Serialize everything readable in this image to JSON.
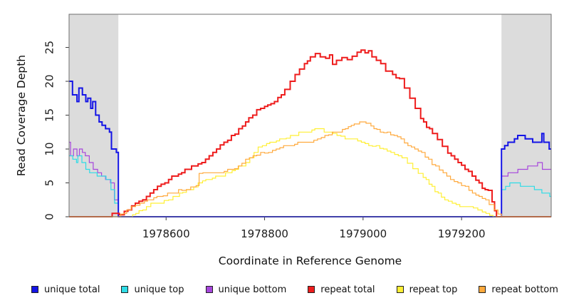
{
  "chart_data": {
    "type": "line",
    "subtype": "step",
    "title": "",
    "xlabel": "Coordinate in Reference Genome",
    "ylabel": "Read Coverage Depth",
    "xlim": [
      1978403,
      1979382
    ],
    "ylim": [
      0,
      29.9
    ],
    "xticks": [
      1978600,
      1978800,
      1979000,
      1979200
    ],
    "yticks": [
      0,
      5,
      10,
      15,
      20,
      25
    ],
    "grid": false,
    "legend_position": "bottom",
    "box_color": "#6e6e6e",
    "tick_color": "#3a3a3a",
    "background": "#ffffff",
    "shaded_regions": [
      {
        "name": "left-masked-region",
        "x0": 1978403,
        "x1": 1978503,
        "color": "#dcdcdc"
      },
      {
        "name": "right-masked-region",
        "x0": 1979281,
        "x1": 1979382,
        "color": "#dcdcdc"
      }
    ],
    "series": [
      {
        "name": "unique total",
        "color": "#1414e6",
        "width": 2,
        "points": [
          [
            1978403,
            20
          ],
          [
            1978410,
            18
          ],
          [
            1978419,
            17
          ],
          [
            1978423,
            19
          ],
          [
            1978437,
            17
          ],
          [
            1978441,
            17.5
          ],
          [
            1978447,
            16
          ],
          [
            1978451,
            17
          ],
          [
            1978457,
            15
          ],
          [
            1978464,
            14
          ],
          [
            1978470,
            13.5
          ],
          [
            1978477,
            13
          ],
          [
            1978485,
            12.5
          ],
          [
            1978489,
            10
          ],
          [
            1978499,
            9.5
          ],
          [
            1978503,
            0
          ],
          [
            1979280,
            0
          ],
          [
            1979281,
            10
          ],
          [
            1979314,
            12
          ],
          [
            1979352,
            11
          ],
          [
            1979363,
            12.3
          ],
          [
            1979367,
            11
          ],
          [
            1979378,
            10
          ],
          [
            1979382,
            10
          ]
        ]
      },
      {
        "name": "unique top",
        "color": "#2edce6",
        "width": 1.2,
        "points": [
          [
            1978403,
            9
          ],
          [
            1978418,
            8
          ],
          [
            1978421,
            9
          ],
          [
            1978437,
            7
          ],
          [
            1978460,
            6
          ],
          [
            1978478,
            5.5
          ],
          [
            1978488,
            4
          ],
          [
            1978503,
            0
          ],
          [
            1979280,
            0
          ],
          [
            1979281,
            4
          ],
          [
            1979298,
            5
          ],
          [
            1979355,
            4
          ],
          [
            1979379,
            3
          ],
          [
            1979382,
            3
          ]
        ]
      },
      {
        "name": "unique bottom",
        "color": "#a646dc",
        "width": 1.2,
        "points": [
          [
            1978403,
            11
          ],
          [
            1978406,
            9
          ],
          [
            1978412,
            10
          ],
          [
            1978419,
            9
          ],
          [
            1978424,
            10
          ],
          [
            1978436,
            9
          ],
          [
            1978444,
            8
          ],
          [
            1978452,
            7
          ],
          [
            1978461,
            6.5
          ],
          [
            1978469,
            6
          ],
          [
            1978477,
            5.5
          ],
          [
            1978487,
            5
          ],
          [
            1978503,
            0
          ],
          [
            1979280,
            0
          ],
          [
            1979281,
            6
          ],
          [
            1979321,
            7
          ],
          [
            1979361,
            8
          ],
          [
            1979364,
            7
          ],
          [
            1979382,
            7
          ]
        ]
      },
      {
        "name": "repeat total",
        "color": "#ee1c1c",
        "width": 2,
        "points": [
          [
            1978403,
            0
          ],
          [
            1978505,
            0.3
          ],
          [
            1978515,
            0.8
          ],
          [
            1978530,
            1.6
          ],
          [
            1978545,
            2.3
          ],
          [
            1978560,
            3
          ],
          [
            1978575,
            4
          ],
          [
            1978590,
            4.8
          ],
          [
            1978605,
            5.5
          ],
          [
            1978625,
            6.3
          ],
          [
            1978645,
            7
          ],
          [
            1978665,
            7.8
          ],
          [
            1978680,
            8.5
          ],
          [
            1978695,
            9.5
          ],
          [
            1978710,
            10.6
          ],
          [
            1978725,
            11.3
          ],
          [
            1978740,
            12.2
          ],
          [
            1978755,
            13.4
          ],
          [
            1978768,
            14.6
          ],
          [
            1978784,
            15.8
          ],
          [
            1978800,
            16.3
          ],
          [
            1978813,
            16.7
          ],
          [
            1978827,
            17.6
          ],
          [
            1978841,
            18.8
          ],
          [
            1978852,
            20
          ],
          [
            1978862,
            21
          ],
          [
            1978871,
            21.8
          ],
          [
            1978881,
            22.6
          ],
          [
            1978893,
            23.6
          ],
          [
            1978903,
            24.1
          ],
          [
            1978913,
            23.6
          ],
          [
            1978924,
            23.4
          ],
          [
            1978932,
            23.9
          ],
          [
            1978938,
            22.5
          ],
          [
            1978946,
            23.1
          ],
          [
            1978957,
            23.5
          ],
          [
            1978968,
            23.2
          ],
          [
            1978978,
            23.7
          ],
          [
            1978988,
            24.3
          ],
          [
            1978996,
            24.6
          ],
          [
            1979004,
            24.2
          ],
          [
            1979011,
            24.5
          ],
          [
            1979018,
            23.6
          ],
          [
            1979027,
            23.1
          ],
          [
            1979036,
            22.6
          ],
          [
            1979046,
            21.5
          ],
          [
            1979060,
            21
          ],
          [
            1979074,
            20.4
          ],
          [
            1979084,
            19
          ],
          [
            1979095,
            17.5
          ],
          [
            1979106,
            16
          ],
          [
            1979117,
            14.5
          ],
          [
            1979129,
            13.2
          ],
          [
            1979141,
            12.3
          ],
          [
            1979151,
            11.4
          ],
          [
            1979161,
            10.4
          ],
          [
            1979172,
            9.4
          ],
          [
            1979186,
            8.5
          ],
          [
            1979200,
            7.6
          ],
          [
            1979214,
            6.7
          ],
          [
            1979229,
            5.4
          ],
          [
            1979242,
            4.2
          ],
          [
            1979254,
            3.9
          ],
          [
            1979262,
            2.2
          ],
          [
            1979267,
            0.9
          ],
          [
            1979271,
            0
          ],
          [
            1979382,
            0
          ]
        ]
      },
      {
        "name": "repeat top",
        "color": "#ffef33",
        "width": 1.2,
        "points": [
          [
            1978403,
            0
          ],
          [
            1978528,
            0
          ],
          [
            1978532,
            0.3
          ],
          [
            1978545,
            0.9
          ],
          [
            1978560,
            1.5
          ],
          [
            1978578,
            2
          ],
          [
            1978596,
            2.4
          ],
          [
            1978614,
            3
          ],
          [
            1978634,
            3.6
          ],
          [
            1978656,
            4.4
          ],
          [
            1978674,
            5.3
          ],
          [
            1978694,
            5.7
          ],
          [
            1978714,
            6
          ],
          [
            1978734,
            6.8
          ],
          [
            1978754,
            7.5
          ],
          [
            1978770,
            8.7
          ],
          [
            1978787,
            10.3
          ],
          [
            1978804,
            10.8
          ],
          [
            1978824,
            11.2
          ],
          [
            1978844,
            11.6
          ],
          [
            1978861,
            12
          ],
          [
            1978878,
            12.5
          ],
          [
            1978896,
            12.8
          ],
          [
            1978908,
            13
          ],
          [
            1978921,
            12.5
          ],
          [
            1978939,
            12.3
          ],
          [
            1978955,
            11.9
          ],
          [
            1978972,
            11.5
          ],
          [
            1978989,
            11.2
          ],
          [
            1979004,
            10.8
          ],
          [
            1979019,
            10.4
          ],
          [
            1979034,
            10.1
          ],
          [
            1979049,
            9.7
          ],
          [
            1979064,
            9.2
          ],
          [
            1979079,
            8.7
          ],
          [
            1979090,
            7.9
          ],
          [
            1979101,
            7.1
          ],
          [
            1979112,
            6.4
          ],
          [
            1979122,
            5.8
          ],
          [
            1979134,
            4.8
          ],
          [
            1979146,
            3.7
          ],
          [
            1979159,
            2.9
          ],
          [
            1979173,
            2.3
          ],
          [
            1979189,
            1.8
          ],
          [
            1979204,
            1.5
          ],
          [
            1979224,
            1.3
          ],
          [
            1979242,
            0.7
          ],
          [
            1979257,
            0.2
          ],
          [
            1979264,
            0
          ],
          [
            1979382,
            0
          ]
        ]
      },
      {
        "name": "repeat bottom",
        "color": "#ffa93c",
        "width": 1.2,
        "points": [
          [
            1978403,
            0
          ],
          [
            1978503,
            0
          ],
          [
            1978508,
            0.4
          ],
          [
            1978520,
            1
          ],
          [
            1978538,
            1.7
          ],
          [
            1978556,
            2.3
          ],
          [
            1978575,
            2.8
          ],
          [
            1978594,
            3.1
          ],
          [
            1978612,
            3.5
          ],
          [
            1978632,
            3.9
          ],
          [
            1978650,
            4.4
          ],
          [
            1978661,
            4.6
          ],
          [
            1978667,
            6.4
          ],
          [
            1978698,
            6.5
          ],
          [
            1978718,
            6.7
          ],
          [
            1978739,
            7.1
          ],
          [
            1978754,
            7.9
          ],
          [
            1978769,
            8.7
          ],
          [
            1978784,
            9.1
          ],
          [
            1978800,
            9.4
          ],
          [
            1978816,
            9.8
          ],
          [
            1978831,
            10.2
          ],
          [
            1978846,
            10.5
          ],
          [
            1978861,
            10.7
          ],
          [
            1978880,
            11
          ],
          [
            1978900,
            11.3
          ],
          [
            1978915,
            11.7
          ],
          [
            1978930,
            12.1
          ],
          [
            1978945,
            12.5
          ],
          [
            1978958,
            12.9
          ],
          [
            1978970,
            13.3
          ],
          [
            1978982,
            13.7
          ],
          [
            1978993,
            14
          ],
          [
            1979006,
            13.8
          ],
          [
            1979016,
            13.4
          ],
          [
            1979028,
            12.9
          ],
          [
            1979042,
            12.4
          ],
          [
            1979056,
            12.1
          ],
          [
            1979070,
            11.8
          ],
          [
            1979084,
            10.9
          ],
          [
            1979098,
            10.3
          ],
          [
            1979112,
            9.7
          ],
          [
            1979126,
            8.8
          ],
          [
            1979140,
            7.7
          ],
          [
            1979155,
            6.9
          ],
          [
            1979170,
            6
          ],
          [
            1979185,
            5.2
          ],
          [
            1979200,
            4.6
          ],
          [
            1979215,
            3.9
          ],
          [
            1979229,
            3.2
          ],
          [
            1979242,
            2.7
          ],
          [
            1979256,
            1.8
          ],
          [
            1979266,
            1
          ],
          [
            1979274,
            0.4
          ],
          [
            1979281,
            0
          ],
          [
            1979382,
            0
          ]
        ]
      }
    ]
  }
}
